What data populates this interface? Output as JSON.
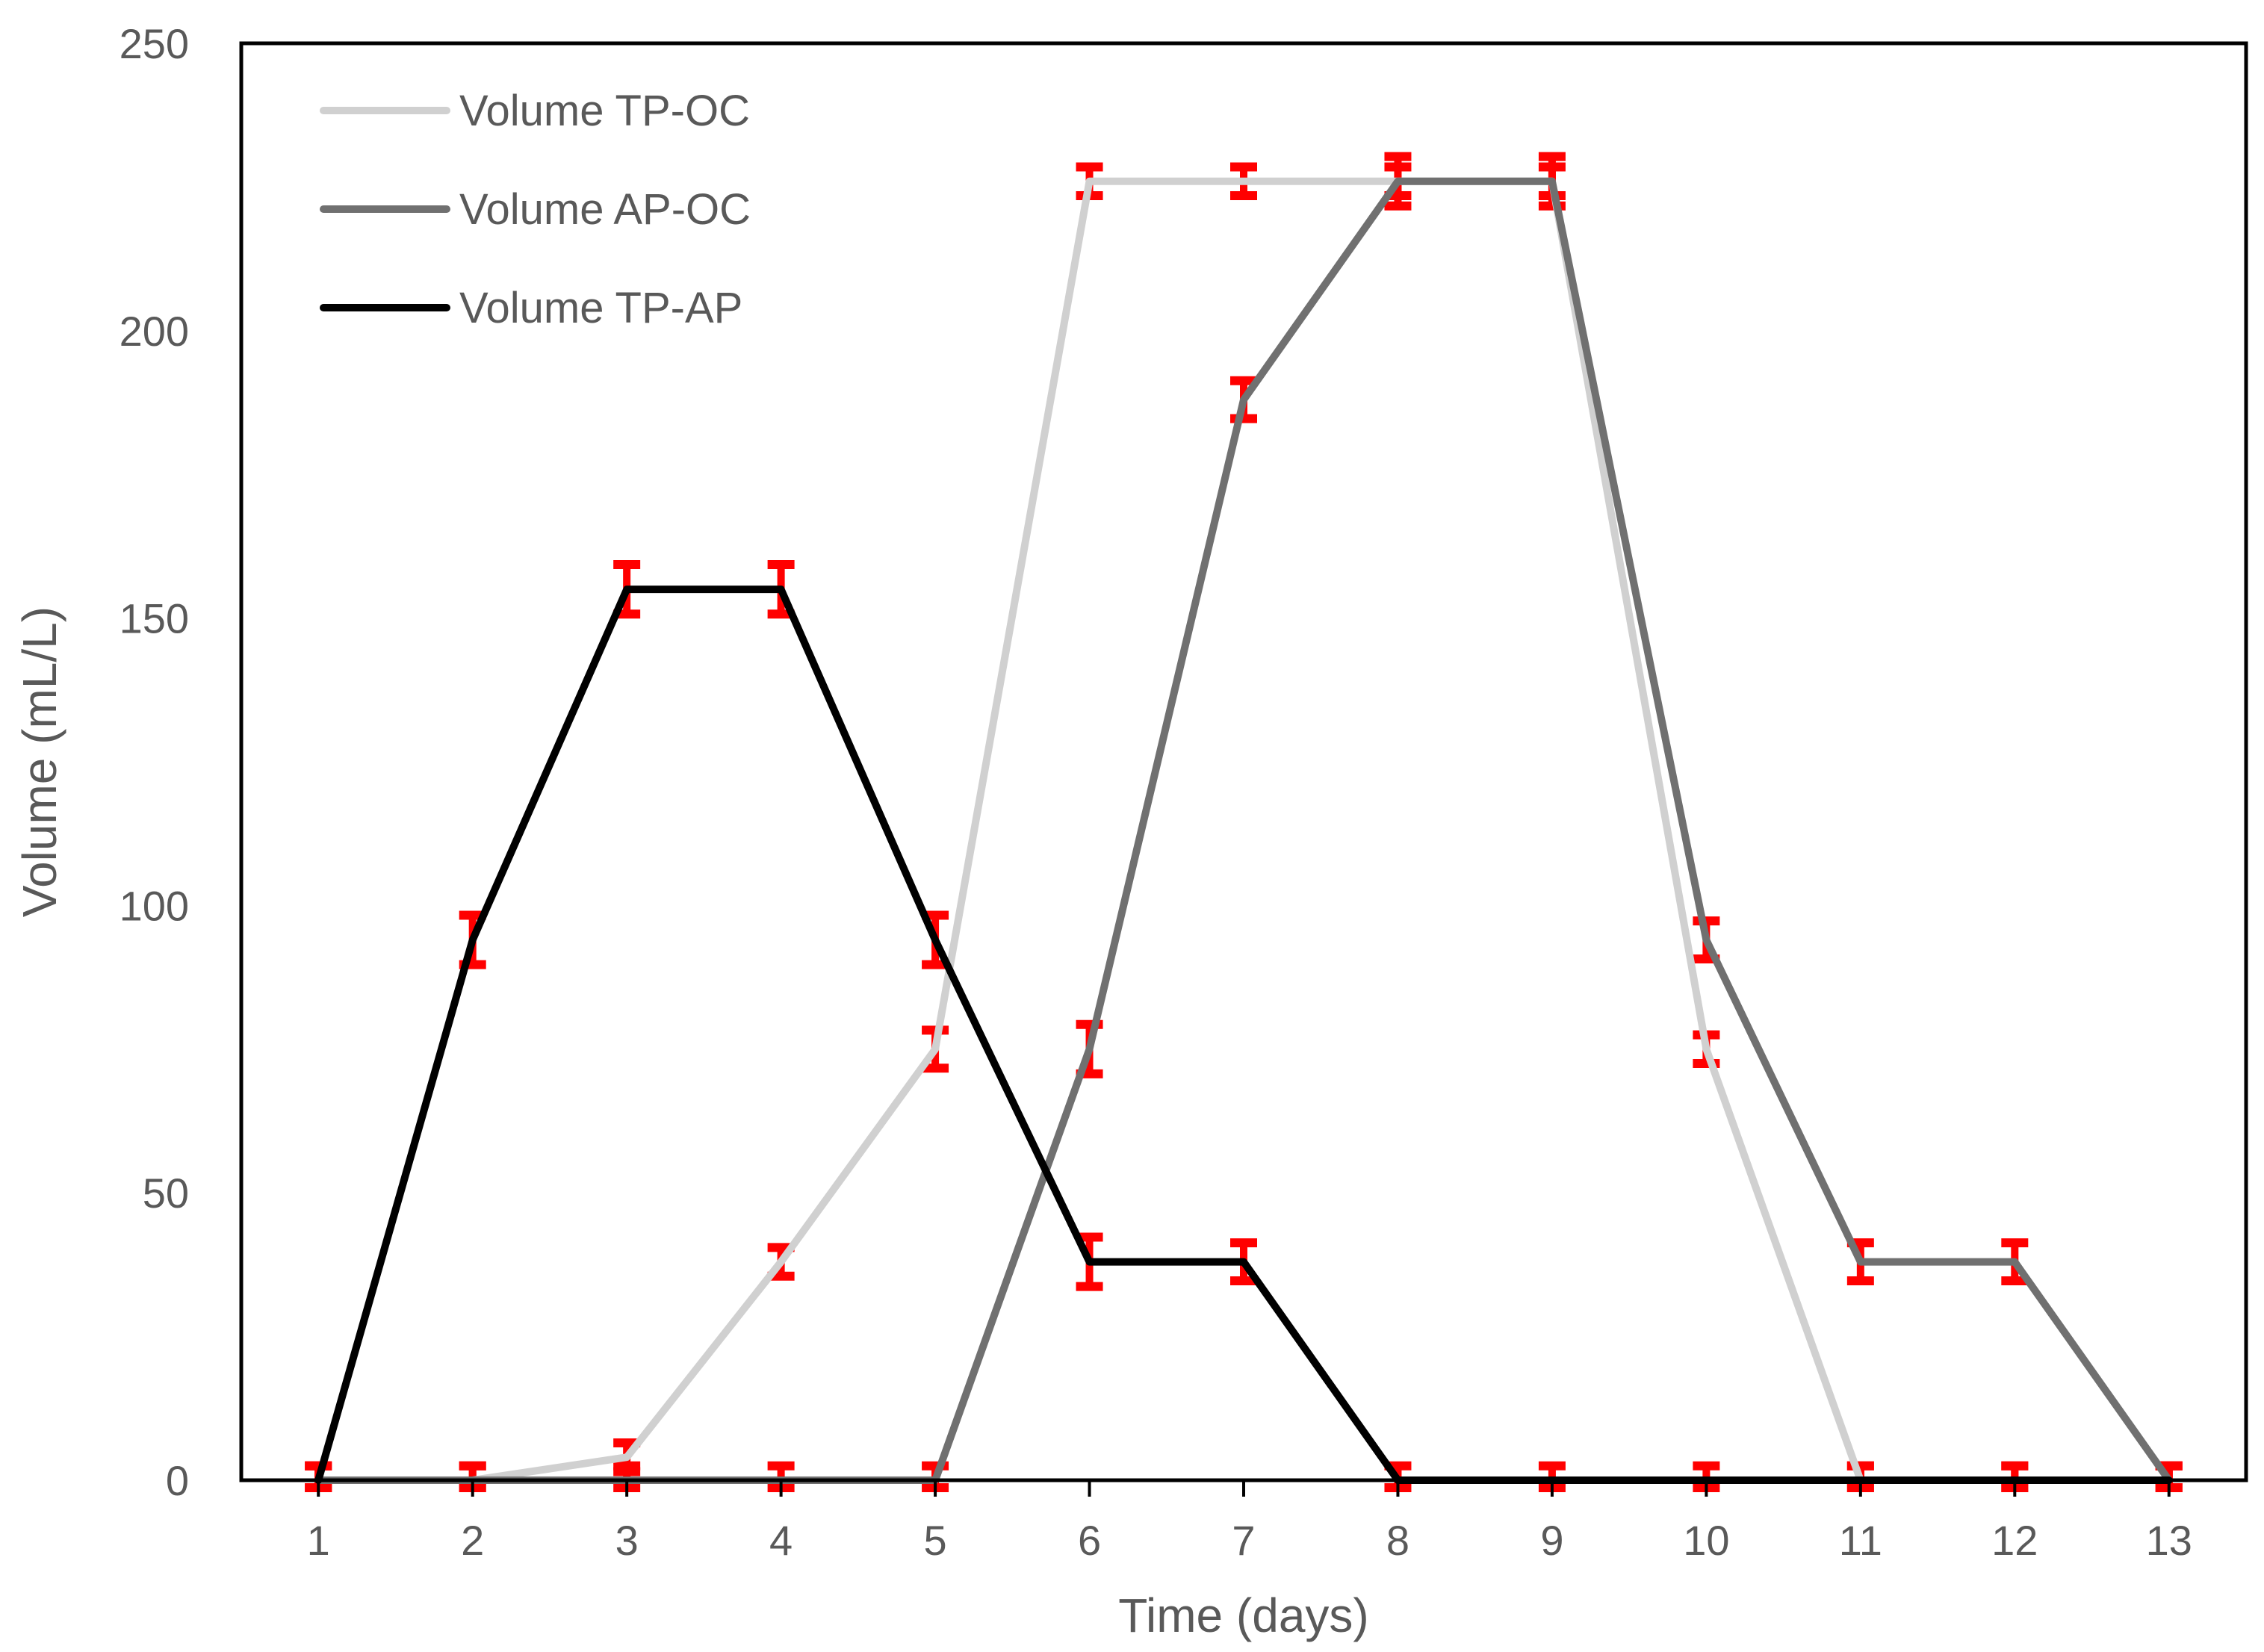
{
  "chart_data": {
    "type": "line",
    "title": "",
    "xlabel": "Time (days)",
    "ylabel": "Volume (mL/L)",
    "x": [
      1,
      2,
      3,
      4,
      5,
      6,
      7,
      8,
      9,
      10,
      11,
      12,
      13
    ],
    "xlim": [
      0.5,
      13.5
    ],
    "ylim": [
      0,
      250
    ],
    "yticks": [
      0,
      50,
      100,
      150,
      200,
      250
    ],
    "grid": false,
    "legend_position": "top-left",
    "series": [
      {
        "name": "Volume TP-OC",
        "color": "#d0d0d0",
        "values": [
          0,
          0,
          4,
          38,
          75,
          226,
          226,
          226,
          226,
          75,
          0,
          0,
          0
        ],
        "errors": [
          0,
          0,
          1,
          0,
          2,
          0,
          0,
          0,
          0,
          0,
          0,
          0,
          0
        ]
      },
      {
        "name": "Volume AP-OC",
        "color": "#707070",
        "values": [
          0,
          0,
          0,
          0,
          0,
          75,
          188,
          226,
          226,
          94,
          38,
          38,
          0
        ],
        "errors": [
          0,
          0,
          0,
          0,
          0,
          3,
          2,
          3,
          3,
          2,
          2,
          2,
          1
        ]
      },
      {
        "name": "Volume TP-AP",
        "color": "#000000",
        "values": [
          0,
          94,
          155,
          155,
          94,
          38,
          38,
          0,
          0,
          0,
          0,
          0,
          0
        ],
        "errors": [
          0,
          3,
          3,
          3,
          3,
          3,
          2,
          0,
          0,
          0,
          0,
          0,
          0
        ]
      }
    ],
    "error_bar_color": "#ff0000"
  }
}
